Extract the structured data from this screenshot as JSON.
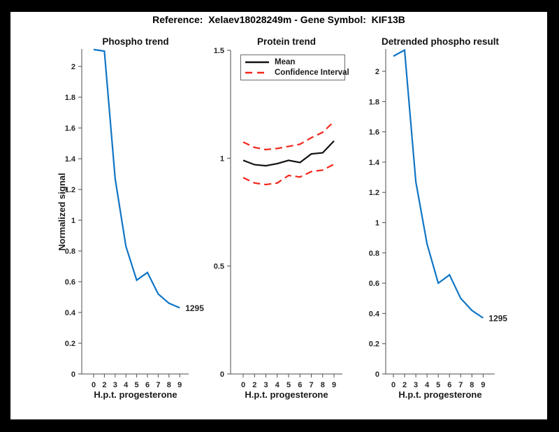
{
  "header": {
    "title": "Reference:  Xelaev18028249m - Gene Symbol:  KIF13B"
  },
  "labels": {
    "xlabel": "H.p.t. progesterone",
    "ylabel": "Normalized signal"
  },
  "colors": {
    "blue": "#0f75c5",
    "red": "#f4261b",
    "black": "#111111",
    "axis": "#4d4d4d",
    "tick_text": "#262626",
    "figure_bg": "#ffffff",
    "frame_bg": "#000000"
  },
  "legend": {
    "items": [
      {
        "label": "Mean",
        "style": "solid",
        "color_key": "black"
      },
      {
        "label": "Confidence Interval",
        "style": "dashed",
        "color_key": "red"
      }
    ]
  },
  "chart_data": [
    {
      "type": "line",
      "title": "Phospho trend",
      "xlabel": "H.p.t. progesterone",
      "ylabel": "Normalized signal",
      "x_ticklabels": [
        "0",
        "2",
        "3",
        "4",
        "5",
        "6",
        "7",
        "8",
        "9"
      ],
      "ylim": [
        0,
        2.114
      ],
      "yticks": [
        0,
        0.2,
        0.4,
        0.6,
        0.8,
        1,
        1.2,
        1.4,
        1.6,
        1.8,
        2
      ],
      "ytick_labels": [
        "0",
        "0.2",
        "0.4",
        "0.6",
        "0.8",
        "1",
        "1.2",
        "1.4",
        "1.6",
        "1.8",
        "2"
      ],
      "grid": false,
      "series": [
        {
          "name": "phospho-signal",
          "color_key": "blue",
          "style": "solid",
          "values": [
            2.11,
            2.1,
            1.27,
            0.83,
            0.61,
            0.66,
            0.52,
            0.46,
            0.43
          ]
        }
      ],
      "annotation": {
        "text": "1295",
        "series": 0
      }
    },
    {
      "type": "line",
      "title": "Protein trend",
      "xlabel": "H.p.t. progesterone",
      "x_ticklabels": [
        "0",
        "2",
        "3",
        "4",
        "5",
        "6",
        "7",
        "8",
        "9"
      ],
      "ylim": [
        0,
        1.5
      ],
      "yticks": [
        0,
        0.5,
        1,
        1.5
      ],
      "ytick_labels": [
        "0",
        "0.5",
        "1",
        "1.5"
      ],
      "grid": false,
      "legend_position": "top-left-inside",
      "series": [
        {
          "name": "ci-upper",
          "color_key": "red",
          "style": "dashed",
          "values": [
            1.075,
            1.05,
            1.04,
            1.045,
            1.055,
            1.065,
            1.095,
            1.12,
            1.17
          ]
        },
        {
          "name": "mean",
          "color_key": "black",
          "style": "solid",
          "values": [
            0.99,
            0.97,
            0.965,
            0.975,
            0.99,
            0.98,
            1.02,
            1.025,
            1.08
          ]
        },
        {
          "name": "ci-lower",
          "color_key": "red",
          "style": "dashed",
          "values": [
            0.91,
            0.885,
            0.878,
            0.885,
            0.92,
            0.913,
            0.938,
            0.945,
            0.972
          ]
        }
      ]
    },
    {
      "type": "line",
      "title": "Detrended phospho result",
      "xlabel": "H.p.t. progesterone",
      "x_ticklabels": [
        "0",
        "2",
        "3",
        "4",
        "5",
        "6",
        "7",
        "8",
        "9"
      ],
      "ylim": [
        0,
        2.148
      ],
      "yticks": [
        0,
        0.2,
        0.4,
        0.6,
        0.8,
        1,
        1.2,
        1.4,
        1.6,
        1.8,
        2
      ],
      "ytick_labels": [
        "0",
        "0.2",
        "0.4",
        "0.6",
        "0.8",
        "1",
        "1.2",
        "1.4",
        "1.6",
        "1.8",
        "2"
      ],
      "grid": false,
      "series": [
        {
          "name": "detrended-phospho-signal",
          "color_key": "blue",
          "style": "solid",
          "values": [
            2.1,
            2.14,
            1.27,
            0.86,
            0.6,
            0.655,
            0.5,
            0.42,
            0.37
          ]
        }
      ],
      "annotation": {
        "text": "1295",
        "series": 0
      }
    }
  ]
}
